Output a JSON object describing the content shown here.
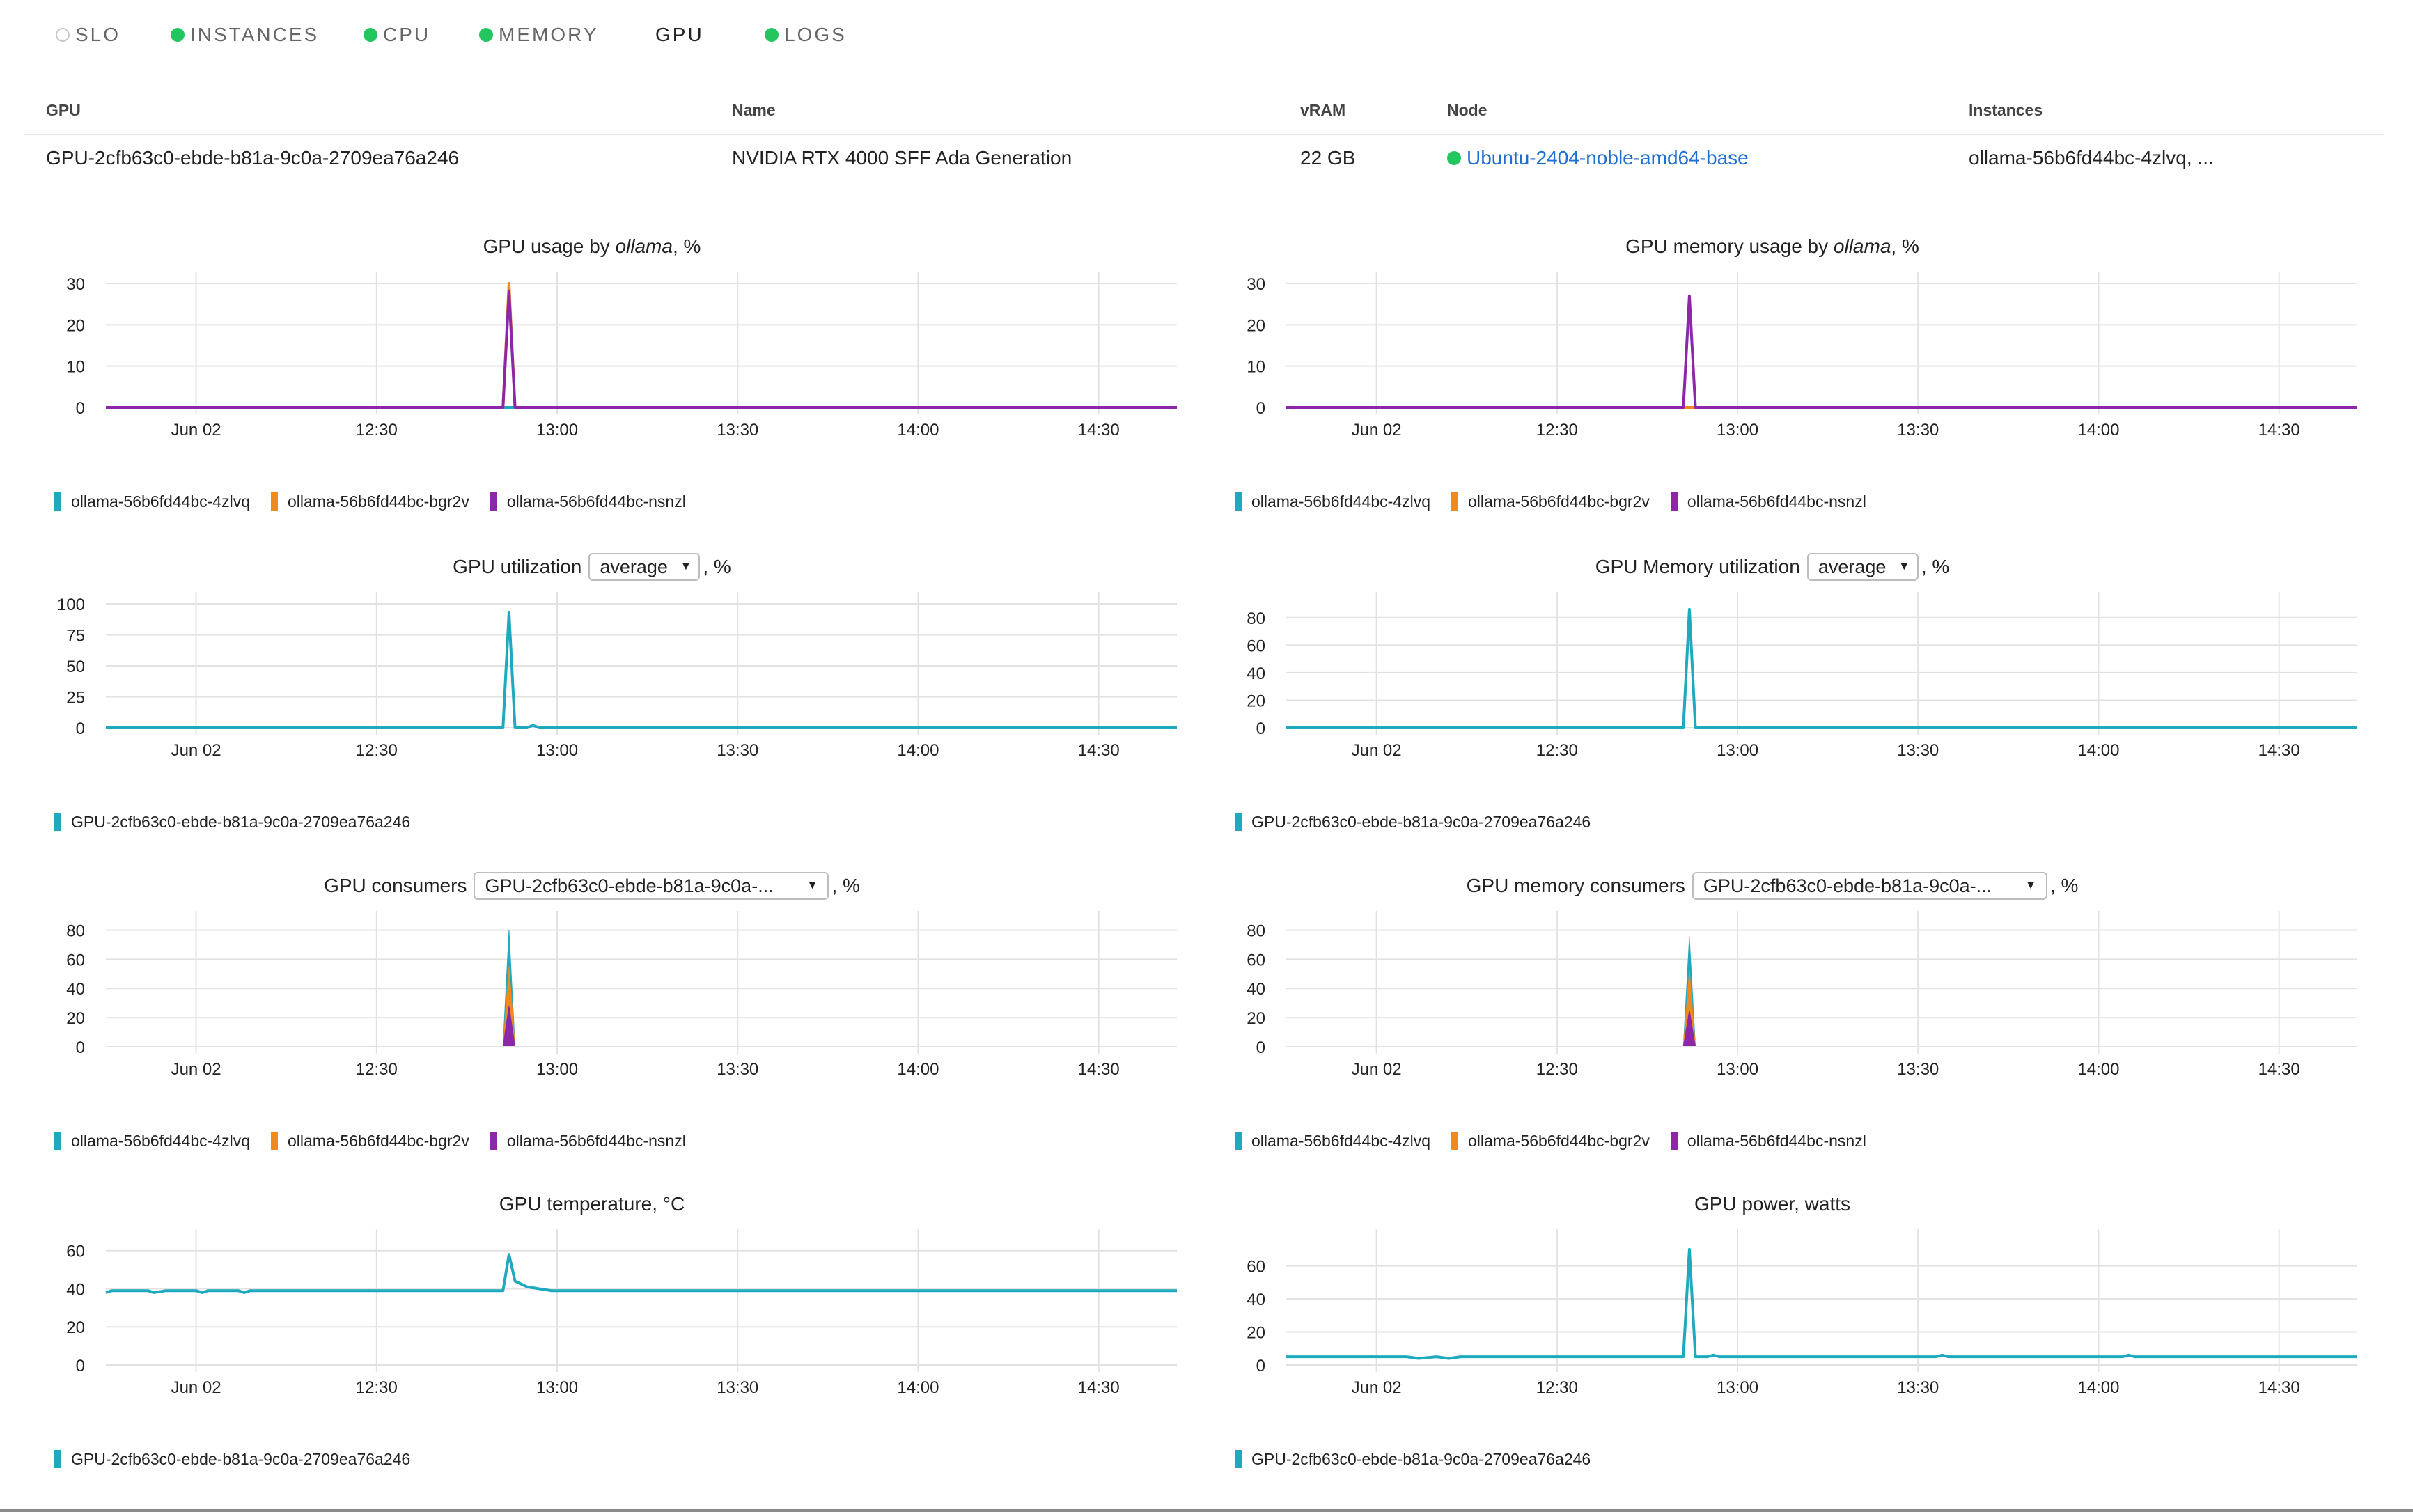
{
  "tabs": [
    {
      "label": "SLO",
      "status": "none"
    },
    {
      "label": "INSTANCES",
      "status": "ok"
    },
    {
      "label": "CPU",
      "status": "ok"
    },
    {
      "label": "MEMORY",
      "status": "ok"
    },
    {
      "label": "GPU",
      "status": "active"
    },
    {
      "label": "LOGS",
      "status": "ok"
    }
  ],
  "table": {
    "headers": {
      "gpu": "GPU",
      "name": "Name",
      "vram": "vRAM",
      "node": "Node",
      "instances": "Instances"
    },
    "row": {
      "gpu": "GPU-2cfb63c0-ebde-b81a-9c0a-2709ea76a246",
      "name": "NVIDIA RTX 4000 SFF Ada Generation",
      "vram": "22 GB",
      "node": "Ubuntu-2404-noble-amd64-base",
      "instances": "ollama-56b6fd44bc-4zlvq, ..."
    }
  },
  "colors": {
    "teal": "#1fa9bf",
    "orange": "#f08a1c",
    "purple": "#8b27a8",
    "green": "#22c55e",
    "link": "#1f6fd1"
  },
  "x_tick_labels": [
    "Jun 02",
    "12:30",
    "13:00",
    "13:30",
    "14:00",
    "14:30"
  ],
  "panels": {
    "gpu_usage": {
      "title_prefix": "GPU usage by ",
      "title_em": "ollama",
      "title_suffix": ", %"
    },
    "gpu_mem_usage": {
      "title_prefix": "GPU memory usage by ",
      "title_em": "ollama",
      "title_suffix": ", %"
    },
    "gpu_util": {
      "title_prefix": "GPU utilization",
      "select_value": "average",
      "title_suffix": ", %"
    },
    "gpu_mem_util": {
      "title_prefix": "GPU Memory utilization",
      "select_value": "average",
      "title_suffix": ", %"
    },
    "gpu_consumers": {
      "title_prefix": "GPU consumers",
      "select_value": "GPU-2cfb63c0-ebde-b81a-9c0a-...",
      "title_suffix": ", %"
    },
    "gpu_mem_consumers": {
      "title_prefix": "GPU memory consumers",
      "select_value": "GPU-2cfb63c0-ebde-b81a-9c0a-...",
      "title_suffix": ", %"
    },
    "gpu_temp": {
      "title": "GPU temperature, °C"
    },
    "gpu_power": {
      "title": "GPU power, watts"
    }
  },
  "chart_data": [
    {
      "id": "gpu_usage",
      "type": "line",
      "ylim": [
        0,
        30
      ],
      "yticks": [
        0,
        10,
        20,
        30
      ],
      "x_range": [
        "11:45",
        "14:43"
      ],
      "x_ticks": [
        "12:00",
        "12:30",
        "13:00",
        "13:30",
        "14:00",
        "14:30"
      ],
      "series": [
        {
          "name": "ollama-56b6fd44bc-4zlvq",
          "color": "#1fa9bf",
          "points": [
            [
              "11:45",
              0
            ],
            [
              "12:51",
              0
            ],
            [
              "12:52",
              0
            ],
            [
              "12:53",
              0
            ],
            [
              "14:43",
              0
            ]
          ]
        },
        {
          "name": "ollama-56b6fd44bc-bgr2v",
          "color": "#f08a1c",
          "points": [
            [
              "11:45",
              0
            ],
            [
              "12:51",
              0
            ],
            [
              "12:52",
              30
            ],
            [
              "12:53",
              0
            ],
            [
              "14:43",
              0
            ]
          ]
        },
        {
          "name": "ollama-56b6fd44bc-nsnzl",
          "color": "#8b27a8",
          "points": [
            [
              "11:45",
              0
            ],
            [
              "12:51",
              0
            ],
            [
              "12:52",
              28
            ],
            [
              "12:53",
              0
            ],
            [
              "14:43",
              0
            ]
          ]
        }
      ]
    },
    {
      "id": "gpu_mem_usage",
      "type": "line",
      "ylim": [
        0,
        30
      ],
      "yticks": [
        0,
        10,
        20,
        30
      ],
      "x_range": [
        "11:45",
        "14:43"
      ],
      "x_ticks": [
        "12:00",
        "12:30",
        "13:00",
        "13:30",
        "14:00",
        "14:30"
      ],
      "series": [
        {
          "name": "ollama-56b6fd44bc-4zlvq",
          "color": "#1fa9bf",
          "points": [
            [
              "11:45",
              0
            ],
            [
              "12:51",
              0
            ],
            [
              "12:52",
              0
            ],
            [
              "12:53",
              0
            ],
            [
              "14:43",
              0
            ]
          ]
        },
        {
          "name": "ollama-56b6fd44bc-bgr2v",
          "color": "#f08a1c",
          "points": [
            [
              "11:45",
              0
            ],
            [
              "12:51",
              0
            ],
            [
              "12:52",
              0
            ],
            [
              "12:53",
              0
            ],
            [
              "14:43",
              0
            ]
          ]
        },
        {
          "name": "ollama-56b6fd44bc-nsnzl",
          "color": "#8b27a8",
          "points": [
            [
              "11:45",
              0
            ],
            [
              "12:51",
              0
            ],
            [
              "12:52",
              27
            ],
            [
              "12:53",
              0
            ],
            [
              "14:43",
              0
            ]
          ]
        }
      ]
    },
    {
      "id": "gpu_util",
      "type": "line",
      "ylim": [
        0,
        100
      ],
      "yticks": [
        0,
        25,
        50,
        75,
        100
      ],
      "x_range": [
        "11:45",
        "14:43"
      ],
      "x_ticks": [
        "12:00",
        "12:30",
        "13:00",
        "13:30",
        "14:00",
        "14:30"
      ],
      "series": [
        {
          "name": "GPU-2cfb63c0-ebde-b81a-9c0a-2709ea76a246",
          "color": "#1fa9bf",
          "points": [
            [
              "11:45",
              0
            ],
            [
              "12:51",
              0
            ],
            [
              "12:52",
              93
            ],
            [
              "12:53",
              0
            ],
            [
              "12:55",
              0
            ],
            [
              "12:56",
              2
            ],
            [
              "12:57",
              0
            ],
            [
              "14:43",
              0
            ]
          ]
        }
      ]
    },
    {
      "id": "gpu_mem_util",
      "type": "line",
      "ylim": [
        0,
        90
      ],
      "yticks": [
        0,
        20,
        40,
        60,
        80
      ],
      "x_range": [
        "11:45",
        "14:43"
      ],
      "x_ticks": [
        "12:00",
        "12:30",
        "13:00",
        "13:30",
        "14:00",
        "14:30"
      ],
      "series": [
        {
          "name": "GPU-2cfb63c0-ebde-b81a-9c0a-2709ea76a246",
          "color": "#1fa9bf",
          "points": [
            [
              "11:45",
              0
            ],
            [
              "12:51",
              0
            ],
            [
              "12:52",
              86
            ],
            [
              "12:53",
              0
            ],
            [
              "14:43",
              0
            ]
          ]
        }
      ]
    },
    {
      "id": "gpu_consumers",
      "type": "area",
      "ylim": [
        0,
        85
      ],
      "yticks": [
        0,
        20,
        40,
        60,
        80
      ],
      "x_range": [
        "11:45",
        "14:43"
      ],
      "x_ticks": [
        "12:00",
        "12:30",
        "13:00",
        "13:30",
        "14:00",
        "14:30"
      ],
      "series": [
        {
          "name": "ollama-56b6fd44bc-4zlvq",
          "color": "#1fa9bf",
          "points": [
            [
              "12:51",
              0
            ],
            [
              "12:52",
              80
            ],
            [
              "12:53",
              0
            ]
          ]
        },
        {
          "name": "ollama-56b6fd44bc-bgr2v",
          "color": "#f08a1c",
          "points": [
            [
              "12:51",
              0
            ],
            [
              "12:52",
              55
            ],
            [
              "12:53",
              0
            ]
          ]
        },
        {
          "name": "ollama-56b6fd44bc-nsnzl",
          "color": "#8b27a8",
          "points": [
            [
              "12:51",
              0
            ],
            [
              "12:52",
              28
            ],
            [
              "12:53",
              0
            ]
          ]
        }
      ]
    },
    {
      "id": "gpu_mem_consumers",
      "type": "area",
      "ylim": [
        0,
        85
      ],
      "yticks": [
        0,
        20,
        40,
        60,
        80
      ],
      "x_range": [
        "11:45",
        "14:43"
      ],
      "x_ticks": [
        "12:00",
        "12:30",
        "13:00",
        "13:30",
        "14:00",
        "14:30"
      ],
      "series": [
        {
          "name": "ollama-56b6fd44bc-4zlvq",
          "color": "#1fa9bf",
          "points": [
            [
              "12:51",
              0
            ],
            [
              "12:52",
              75
            ],
            [
              "12:53",
              0
            ]
          ]
        },
        {
          "name": "ollama-56b6fd44bc-bgr2v",
          "color": "#f08a1c",
          "points": [
            [
              "12:51",
              0
            ],
            [
              "12:52",
              52
            ],
            [
              "12:53",
              0
            ]
          ]
        },
        {
          "name": "ollama-56b6fd44bc-nsnzl",
          "color": "#8b27a8",
          "points": [
            [
              "12:51",
              0
            ],
            [
              "12:52",
              25
            ],
            [
              "12:53",
              0
            ]
          ]
        }
      ]
    },
    {
      "id": "gpu_temp",
      "type": "line",
      "ylim": [
        0,
        65
      ],
      "yticks": [
        0,
        20,
        40,
        60
      ],
      "x_range": [
        "11:45",
        "14:43"
      ],
      "x_ticks": [
        "12:00",
        "12:30",
        "13:00",
        "13:30",
        "14:00",
        "14:30"
      ],
      "series": [
        {
          "name": "GPU-2cfb63c0-ebde-b81a-9c0a-2709ea76a246",
          "color": "#1fa9bf",
          "points": [
            [
              "11:45",
              38
            ],
            [
              "11:46",
              39
            ],
            [
              "11:52",
              39
            ],
            [
              "11:53",
              38
            ],
            [
              "11:55",
              39
            ],
            [
              "12:00",
              39
            ],
            [
              "12:01",
              38
            ],
            [
              "12:02",
              39
            ],
            [
              "12:07",
              39
            ],
            [
              "12:08",
              38
            ],
            [
              "12:09",
              39
            ],
            [
              "12:50",
              39
            ],
            [
              "12:51",
              39
            ],
            [
              "12:52",
              58
            ],
            [
              "12:53",
              44
            ],
            [
              "12:55",
              41
            ],
            [
              "12:57",
              40
            ],
            [
              "12:59",
              39
            ],
            [
              "14:43",
              39
            ]
          ]
        }
      ]
    },
    {
      "id": "gpu_power",
      "type": "line",
      "ylim": [
        0,
        75
      ],
      "yticks": [
        0,
        20,
        40,
        60
      ],
      "x_range": [
        "11:45",
        "14:43"
      ],
      "x_ticks": [
        "12:00",
        "12:30",
        "13:00",
        "13:30",
        "14:00",
        "14:30"
      ],
      "series": [
        {
          "name": "GPU-2cfb63c0-ebde-b81a-9c0a-2709ea76a246",
          "color": "#1fa9bf",
          "points": [
            [
              "11:45",
              5
            ],
            [
              "12:05",
              5
            ],
            [
              "12:07",
              4
            ],
            [
              "12:10",
              5
            ],
            [
              "12:12",
              4
            ],
            [
              "12:14",
              5
            ],
            [
              "12:51",
              5
            ],
            [
              "12:52",
              70
            ],
            [
              "12:53",
              5
            ],
            [
              "12:55",
              5
            ],
            [
              "12:56",
              6
            ],
            [
              "12:57",
              5
            ],
            [
              "13:33",
              5
            ],
            [
              "13:34",
              6
            ],
            [
              "13:35",
              5
            ],
            [
              "14:04",
              5
            ],
            [
              "14:05",
              6
            ],
            [
              "14:06",
              5
            ],
            [
              "14:43",
              5
            ]
          ]
        }
      ]
    }
  ]
}
